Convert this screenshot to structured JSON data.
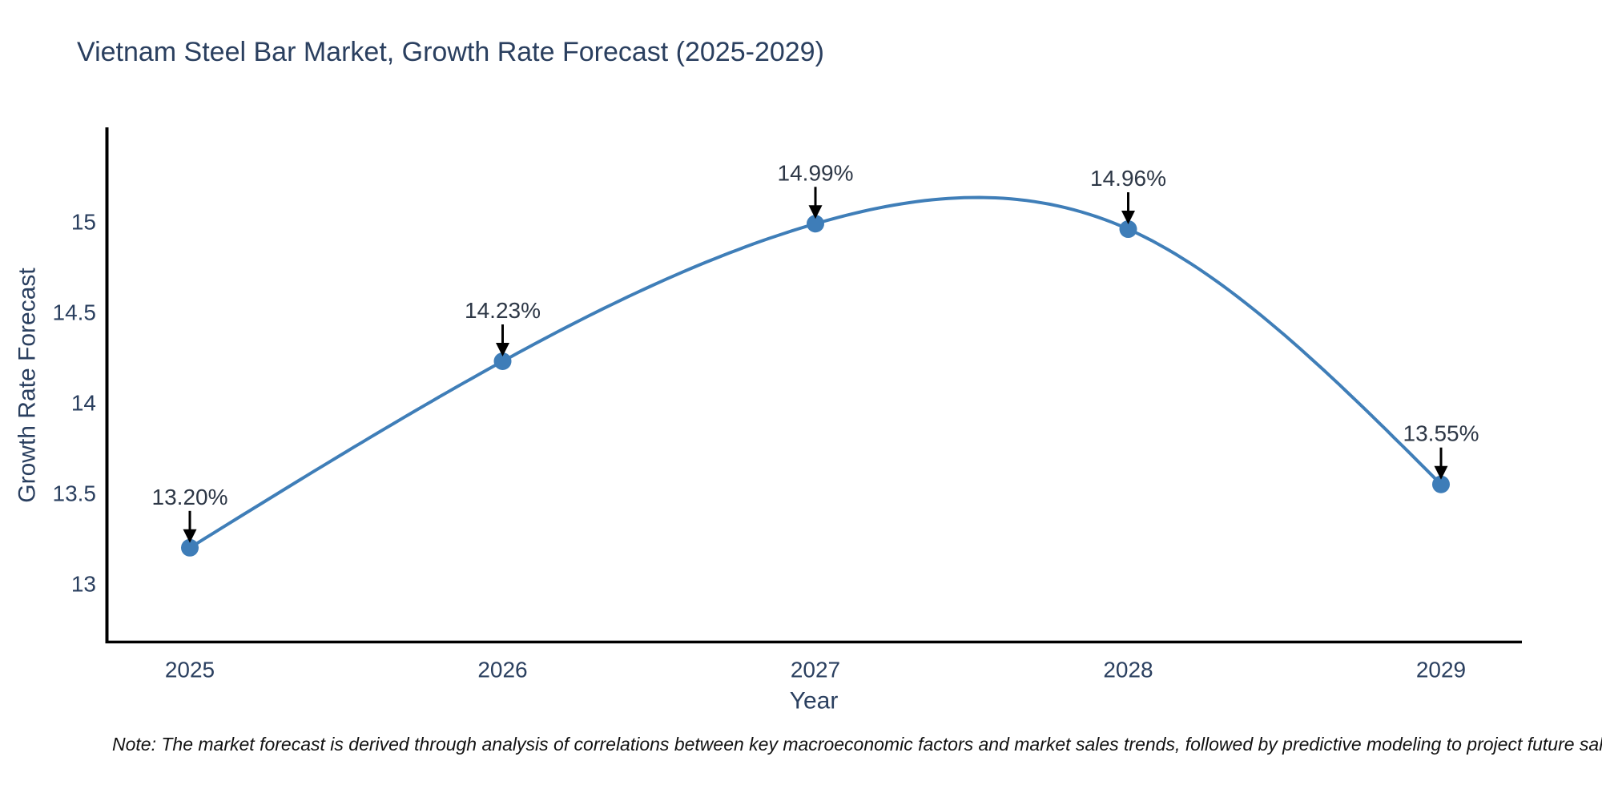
{
  "note": "Note: The market forecast is derived through analysis of correlations between key macroeconomic factors and market sales trends, followed by predictive modeling to project future sal",
  "chart_data": {
    "type": "line",
    "title": "Vietnam Steel Bar Market, Growth Rate Forecast (2025-2029)",
    "xlabel": "Year",
    "ylabel": "Growth Rate Forecast",
    "x": [
      2025,
      2026,
      2027,
      2028,
      2029
    ],
    "y": [
      13.2,
      14.23,
      14.99,
      14.96,
      13.55
    ],
    "series": [
      {
        "name": "Growth Rate Forecast",
        "values": [
          13.2,
          14.23,
          14.99,
          14.96,
          13.55
        ]
      }
    ],
    "point_labels": [
      "13.20%",
      "14.23%",
      "14.96%",
      "13.55%"
    ],
    "annotations": [
      "13.20%",
      "14.23%",
      "14.99%",
      "14.96%",
      "13.55%"
    ],
    "xtick_labels": [
      "2025",
      "2026",
      "2027",
      "2028",
      "2029"
    ],
    "yticks": [
      13,
      13.5,
      14,
      14.5,
      15
    ],
    "ytick_labels": [
      "13",
      "13.5",
      "14",
      "14.5",
      "15"
    ],
    "ylim": [
      12.68,
      15.52
    ],
    "line_shape": "spline",
    "grid": false,
    "legend": "none",
    "colors": {
      "line": "#3f7eb8",
      "marker": "#3e7db8",
      "arrow": "#000000",
      "axis": "#000000",
      "text": "#2a3f5f"
    }
  }
}
